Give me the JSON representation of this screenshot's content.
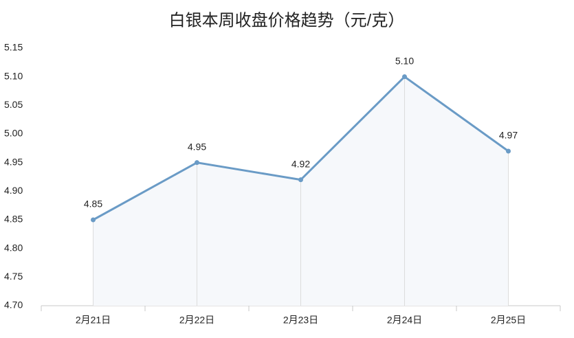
{
  "chart_data": {
    "type": "line",
    "title": "白银本周收盘价格趋势（元/克）",
    "categories": [
      "2月21日",
      "2月22日",
      "2月23日",
      "2月24日",
      "2月25日"
    ],
    "series": [
      {
        "name": "收盘价格",
        "color": "#6a9bc6",
        "values": [
          4.85,
          4.95,
          4.92,
          5.1,
          4.97
        ],
        "value_labels": [
          "4.85",
          "4.95",
          "4.92",
          "5.10",
          "4.97"
        ]
      }
    ],
    "ylim": [
      4.7,
      5.15
    ],
    "yticks": [
      {
        "value": 4.7,
        "label": "4.70"
      },
      4.75,
      {
        "value": 4.8,
        "label": "4.80"
      },
      4.85,
      {
        "value": 4.9,
        "label": "4.90"
      },
      4.95,
      {
        "value": 5.0,
        "label": "5.00"
      },
      5.05,
      {
        "value": 5.1,
        "label": "5.10"
      },
      5.15
    ],
    "grid": false
  }
}
